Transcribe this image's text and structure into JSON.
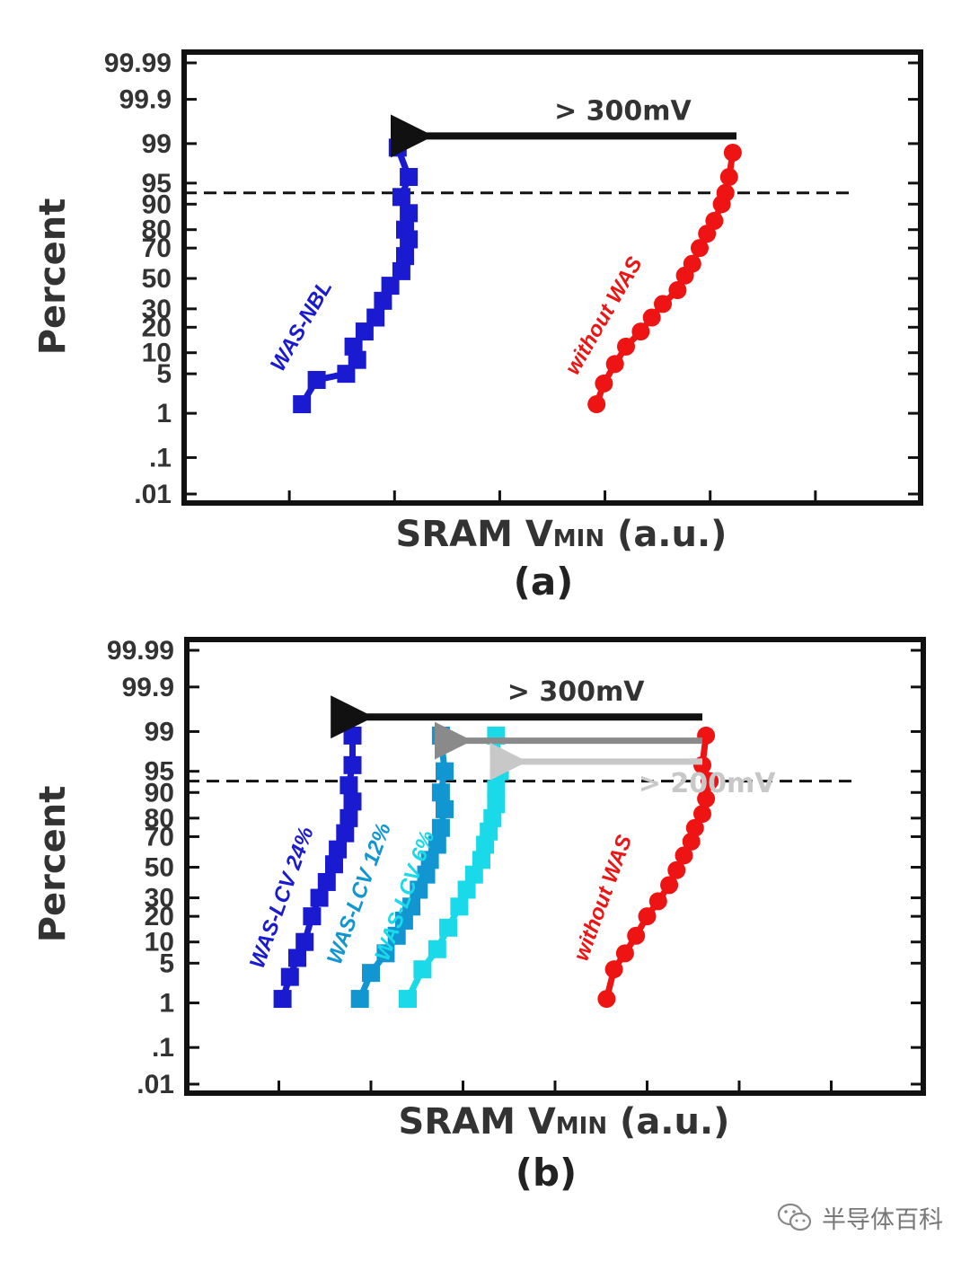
{
  "colors": {
    "axis": "#111111",
    "text": "#333333",
    "blue": "#1a1ad0",
    "blue_mid": "#1296d2",
    "cyan": "#1ad9e8",
    "red": "#ee1414",
    "arrow_black": "#111111",
    "arrow_grey_dark": "#8a8a8a",
    "arrow_grey_light": "#c8c8c8"
  },
  "watermark": {
    "text": "半导体百科",
    "icon": "wechat-icon"
  },
  "chart_data": [
    {
      "type": "scatter",
      "panel_label": "(a)",
      "xlabel": "SRAM V",
      "xlabel_sub": "MIN",
      "xlabel_unit": " (a.u.)",
      "ylabel": "Percent",
      "y_scale": "probability",
      "y_ticks": [
        "99.99",
        "99.9",
        "99",
        "95",
        "90",
        "80",
        "70",
        "50",
        "30",
        "20",
        "10",
        "5",
        "1",
        ".1",
        ".01"
      ],
      "y_tick_values": [
        99.99,
        99.9,
        99,
        95,
        90,
        80,
        70,
        50,
        30,
        20,
        10,
        5,
        1,
        0.1,
        0.01
      ],
      "xlim": [
        0,
        10
      ],
      "x_tick_count": 7,
      "reference_line": {
        "percent": 93,
        "style": "dashed"
      },
      "arrows": [
        {
          "label": "> 300mV",
          "from_x": 7.5,
          "to_x": 2.95,
          "percent": 99.3,
          "color": "arrow_black"
        }
      ],
      "series": [
        {
          "name": "WAS-NBL",
          "color": "blue",
          "marker": "square",
          "x": [
            1.6,
            1.8,
            2.2,
            2.35,
            2.3,
            2.45,
            2.6,
            2.7,
            2.8,
            2.95,
            3.0,
            3.05,
            3.0,
            3.05,
            2.95,
            3.05,
            2.9
          ],
          "y": [
            1.5,
            4,
            5,
            8,
            12,
            18,
            25,
            35,
            45,
            55,
            65,
            75,
            80,
            87,
            92,
            96,
            98.8
          ],
          "label_angle": -60
        },
        {
          "name": "without WAS",
          "color": "red",
          "marker": "circle",
          "x": [
            5.6,
            5.7,
            5.85,
            6.0,
            6.2,
            6.35,
            6.5,
            6.7,
            6.8,
            6.9,
            7.0,
            7.1,
            7.2,
            7.3,
            7.35,
            7.4,
            7.45
          ],
          "y": [
            1.5,
            3.5,
            7,
            12,
            18,
            25,
            33,
            42,
            52,
            60,
            70,
            78,
            84,
            90,
            93,
            96,
            98.5
          ],
          "label_angle": -60
        }
      ]
    },
    {
      "type": "scatter",
      "panel_label": "(b)",
      "xlabel": "SRAM V",
      "xlabel_sub": "MIN",
      "xlabel_unit": " (a.u.)",
      "ylabel": "Percent",
      "y_scale": "probability",
      "y_ticks": [
        "99.99",
        "99.9",
        "99",
        "95",
        "90",
        "80",
        "70",
        "50",
        "30",
        "20",
        "10",
        "5",
        "1",
        ".1",
        ".01"
      ],
      "y_tick_values": [
        99.99,
        99.9,
        99,
        95,
        90,
        80,
        70,
        50,
        30,
        20,
        10,
        5,
        1,
        0.1,
        0.01
      ],
      "xlim": [
        0,
        10
      ],
      "x_tick_count": 8,
      "reference_line": {
        "percent": 93,
        "style": "dashed"
      },
      "arrows": [
        {
          "label": "> 300mV",
          "from_x": 7.0,
          "to_x": 2.1,
          "percent": 99.5,
          "color": "arrow_black"
        },
        {
          "label": "",
          "from_x": 7.0,
          "to_x": 3.45,
          "percent": 98.5,
          "color": "arrow_grey_dark"
        },
        {
          "label": "> 200mV",
          "from_x": 7.0,
          "to_x": 4.2,
          "percent": 96.5,
          "color": "arrow_grey_light"
        }
      ],
      "series": [
        {
          "name": "WAS-LCV 24%",
          "color": "blue",
          "marker": "square",
          "x": [
            1.3,
            1.4,
            1.5,
            1.6,
            1.7,
            1.8,
            1.9,
            2.0,
            2.05,
            2.15,
            2.2,
            2.25,
            2.2,
            2.25,
            2.25
          ],
          "y": [
            1.2,
            3,
            6,
            10,
            20,
            30,
            40,
            52,
            62,
            72,
            80,
            87,
            92,
            96,
            98.8
          ],
          "label_angle": -70
        },
        {
          "name": "WAS-LCV 12%",
          "color": "blue_mid",
          "marker": "square",
          "x": [
            2.35,
            2.5,
            2.7,
            2.85,
            2.95,
            3.05,
            3.15,
            3.25,
            3.3,
            3.4,
            3.45,
            3.5,
            3.45,
            3.5,
            3.45
          ],
          "y": [
            1.2,
            3.5,
            7,
            12,
            18,
            25,
            35,
            45,
            55,
            65,
            75,
            84,
            90,
            95,
            98.8
          ],
          "label_angle": -70
        },
        {
          "name": "WAS-LCV 6%",
          "color": "cyan",
          "marker": "square",
          "x": [
            3.0,
            3.2,
            3.4,
            3.55,
            3.7,
            3.8,
            3.9,
            4.0,
            4.05,
            4.1,
            4.15,
            4.2,
            4.2,
            4.25,
            4.2
          ],
          "y": [
            1.2,
            4,
            8,
            15,
            25,
            35,
            45,
            55,
            65,
            73,
            80,
            86,
            91,
            95,
            98.8
          ],
          "label_angle": -70
        },
        {
          "name": "without WAS",
          "color": "red",
          "marker": "circle",
          "x": [
            5.7,
            5.8,
            5.95,
            6.1,
            6.25,
            6.4,
            6.55,
            6.65,
            6.75,
            6.85,
            6.9,
            7.0,
            7.05,
            7.1,
            7.0,
            7.05
          ],
          "y": [
            1.2,
            4,
            7,
            12,
            20,
            28,
            38,
            48,
            58,
            67,
            75,
            82,
            88,
            93,
            96,
            98.8
          ],
          "label_angle": -70
        }
      ]
    }
  ]
}
